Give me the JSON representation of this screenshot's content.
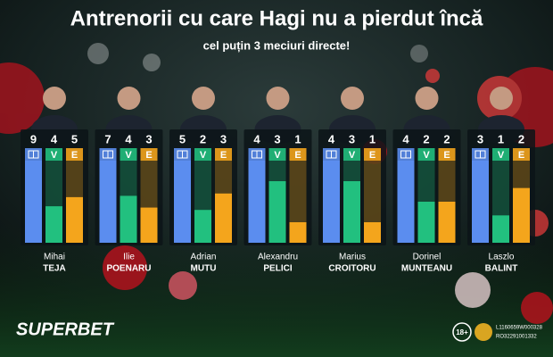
{
  "chart_data": {
    "type": "bar",
    "title": "Antrenorii cu care Hagi nu a pierdut încă",
    "subtitle": "cel puțin 3 meciuri directe!",
    "categories": [
      {
        "first": "Mihai",
        "last": "TEJA"
      },
      {
        "first": "Ilie",
        "last": "POENARU"
      },
      {
        "first": "Adrian",
        "last": "MUTU"
      },
      {
        "first": "Alexandru",
        "last": "PELICI"
      },
      {
        "first": "Marius",
        "last": "CROITORU"
      },
      {
        "first": "Dorinel",
        "last": "MUNTEANU"
      },
      {
        "first": "Laszlo",
        "last": "BALINT"
      }
    ],
    "series": [
      {
        "color": "#5b8def",
        "values": [
          9,
          7,
          5,
          4,
          4,
          4,
          3
        ]
      },
      {
        "name": "V",
        "color": "#22c07f",
        "values": [
          4,
          4,
          2,
          3,
          3,
          2,
          1
        ]
      },
      {
        "name": "E",
        "color": "#f4a51c",
        "values": [
          5,
          3,
          3,
          1,
          1,
          2,
          2
        ]
      }
    ],
    "brand": "SUPERBET",
    "age": "18+",
    "license": [
      "L1160659W000328",
      "RO32291001332"
    ]
  }
}
